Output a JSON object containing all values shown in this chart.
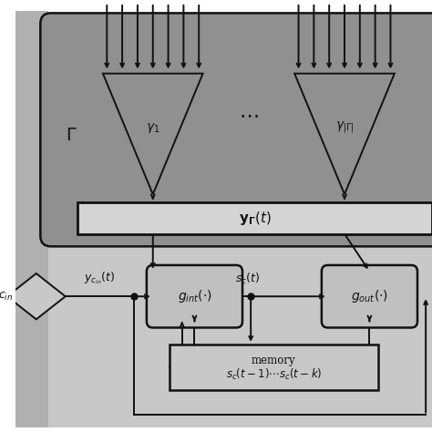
{
  "bg_white": "#ffffff",
  "bg_light_gray": "#c8c8c8",
  "bg_dark_gray": "#909090",
  "bg_medium_gray": "#b0b0b0",
  "yr_box_fill": "#d4d4d4",
  "box_fill": "#c0c0c0",
  "memory_fill": "#c8c8c8",
  "line_color": "#111111",
  "lw": 1.4
}
